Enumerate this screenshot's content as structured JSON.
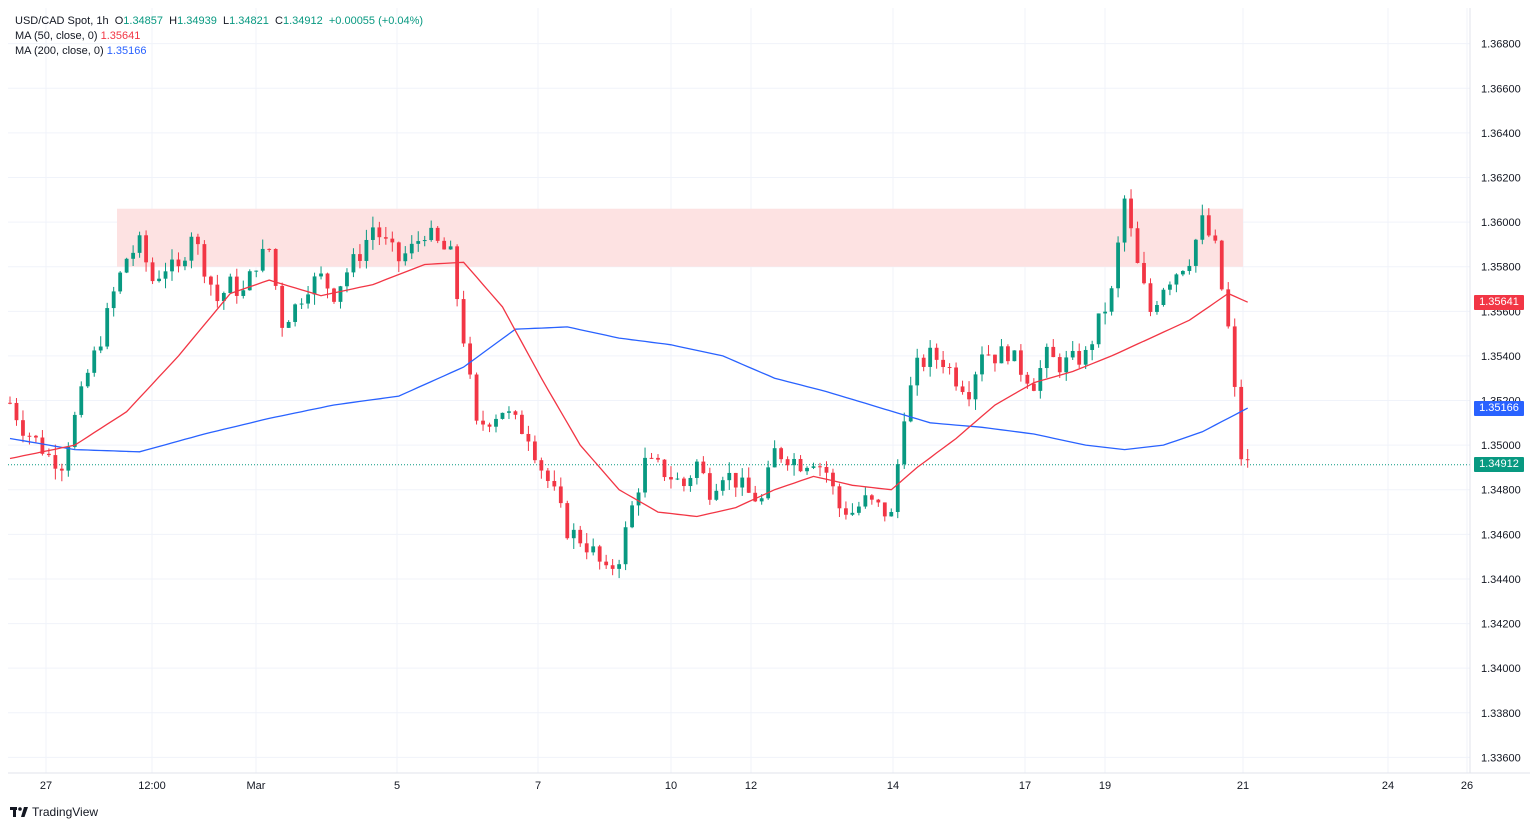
{
  "legend": {
    "symbol": "USD/CAD Spot",
    "interval": "1h",
    "o_label": "O",
    "o_value": "1.34857",
    "h_label": "H",
    "h_value": "1.34939",
    "l_label": "L",
    "l_value": "1.34821",
    "c_label": "C",
    "c_value": "1.34912",
    "change": "+0.00055 (+0.04%)",
    "ma50_label": "MA (50, close, 0)",
    "ma50_value": "1.35641",
    "ma200_label": "MA (200, close, 0)",
    "ma200_value": "1.35166"
  },
  "price_tags": {
    "ma50": "1.35641",
    "ma200": "1.35166",
    "last": "1.34912"
  },
  "brand": "TradingView",
  "colors": {
    "up": "#089981",
    "down": "#f23645",
    "ma50": "#f23645",
    "ma200": "#2962ff",
    "zone": "#fde2e2",
    "grid": "#f0f3fa"
  },
  "chart_data": {
    "type": "candlestick",
    "symbol": "USD/CAD Spot",
    "interval": "1h",
    "y_ticks": [
      "1.36800",
      "1.36600",
      "1.36400",
      "1.36200",
      "1.36000",
      "1.35800",
      "1.35600",
      "1.35400",
      "1.35200",
      "1.35000",
      "1.34800",
      "1.34600",
      "1.34400",
      "1.34200",
      "1.34000",
      "1.33800",
      "1.33600"
    ],
    "ylim": [
      1.3353,
      1.3696
    ],
    "x_tick_labels": [
      "27",
      "12:00",
      "Mar",
      "5",
      "7",
      "10",
      "12",
      "14",
      "17",
      "19",
      "21",
      "24",
      "26"
    ],
    "last_price": 1.34912,
    "resistance_zone": {
      "low": 1.358,
      "high": 1.3606
    },
    "close_path": [
      [
        0,
        1.3519
      ],
      [
        2,
        1.3508
      ],
      [
        4,
        1.3502
      ],
      [
        6,
        1.3495
      ],
      [
        8,
        1.3492
      ],
      [
        10,
        1.3512
      ],
      [
        12,
        1.3532
      ],
      [
        14,
        1.3548
      ],
      [
        16,
        1.3568
      ],
      [
        18,
        1.3584
      ],
      [
        20,
        1.359
      ],
      [
        22,
        1.3574
      ],
      [
        24,
        1.358
      ],
      [
        26,
        1.3578
      ],
      [
        28,
        1.3596
      ],
      [
        30,
        1.358
      ],
      [
        32,
        1.3565
      ],
      [
        34,
        1.3572
      ],
      [
        36,
        1.3568
      ],
      [
        38,
        1.3582
      ],
      [
        40,
        1.3588
      ],
      [
        42,
        1.3555
      ],
      [
        44,
        1.3562
      ],
      [
        46,
        1.3572
      ],
      [
        48,
        1.3575
      ],
      [
        50,
        1.3568
      ],
      [
        52,
        1.3578
      ],
      [
        54,
        1.3586
      ],
      [
        56,
        1.3598
      ],
      [
        58,
        1.359
      ],
      [
        60,
        1.3583
      ],
      [
        62,
        1.3588
      ],
      [
        64,
        1.3596
      ],
      [
        66,
        1.359
      ],
      [
        68,
        1.3585
      ],
      [
        70,
        1.3548
      ],
      [
        72,
        1.3508
      ],
      [
        74,
        1.3512
      ],
      [
        76,
        1.3516
      ],
      [
        78,
        1.351
      ],
      [
        80,
        1.3505
      ],
      [
        82,
        1.349
      ],
      [
        84,
        1.3478
      ],
      [
        86,
        1.3462
      ],
      [
        88,
        1.3458
      ],
      [
        90,
        1.3452
      ],
      [
        92,
        1.3442
      ],
      [
        94,
        1.345
      ],
      [
        96,
        1.3472
      ],
      [
        98,
        1.3492
      ],
      [
        100,
        1.349
      ],
      [
        102,
        1.3486
      ],
      [
        104,
        1.3482
      ],
      [
        106,
        1.3492
      ],
      [
        108,
        1.348
      ],
      [
        110,
        1.3488
      ],
      [
        112,
        1.3484
      ],
      [
        114,
        1.3478
      ],
      [
        116,
        1.3475
      ],
      [
        118,
        1.3497
      ],
      [
        120,
        1.3495
      ],
      [
        122,
        1.3492
      ],
      [
        124,
        1.3494
      ],
      [
        126,
        1.3488
      ],
      [
        128,
        1.3472
      ],
      [
        130,
        1.347
      ],
      [
        132,
        1.3475
      ],
      [
        134,
        1.3472
      ],
      [
        136,
        1.3468
      ],
      [
        138,
        1.3515
      ],
      [
        140,
        1.3535
      ],
      [
        142,
        1.354
      ],
      [
        144,
        1.3538
      ],
      [
        146,
        1.353
      ],
      [
        148,
        1.3525
      ],
      [
        150,
        1.3543
      ],
      [
        152,
        1.354
      ],
      [
        154,
        1.3542
      ],
      [
        156,
        1.3534
      ],
      [
        158,
        1.3528
      ],
      [
        160,
        1.354
      ],
      [
        162,
        1.3536
      ],
      [
        164,
        1.3538
      ],
      [
        166,
        1.354
      ],
      [
        168,
        1.3555
      ],
      [
        170,
        1.3568
      ],
      [
        172,
        1.361
      ],
      [
        174,
        1.358
      ],
      [
        176,
        1.356
      ],
      [
        178,
        1.3572
      ],
      [
        180,
        1.3578
      ],
      [
        182,
        1.3584
      ],
      [
        184,
        1.36
      ],
      [
        186,
        1.3588
      ],
      [
        188,
        1.3552
      ],
      [
        190,
        1.3495
      ],
      [
        191,
        1.34912
      ]
    ],
    "ma50": [
      [
        0,
        1.3494
      ],
      [
        10,
        1.35
      ],
      [
        18,
        1.3515
      ],
      [
        26,
        1.354
      ],
      [
        34,
        1.3568
      ],
      [
        40,
        1.3574
      ],
      [
        48,
        1.3567
      ],
      [
        56,
        1.3572
      ],
      [
        64,
        1.3581
      ],
      [
        70,
        1.3582
      ],
      [
        76,
        1.3562
      ],
      [
        82,
        1.353
      ],
      [
        88,
        1.35
      ],
      [
        94,
        1.348
      ],
      [
        100,
        1.347
      ],
      [
        106,
        1.3468
      ],
      [
        112,
        1.3472
      ],
      [
        118,
        1.348
      ],
      [
        124,
        1.3486
      ],
      [
        130,
        1.3482
      ],
      [
        136,
        1.348
      ],
      [
        140,
        1.349
      ],
      [
        146,
        1.3503
      ],
      [
        152,
        1.3518
      ],
      [
        158,
        1.3528
      ],
      [
        164,
        1.3533
      ],
      [
        170,
        1.354
      ],
      [
        176,
        1.3548
      ],
      [
        182,
        1.3556
      ],
      [
        188,
        1.3568
      ],
      [
        191,
        1.35641
      ]
    ],
    "ma200": [
      [
        0,
        1.3503
      ],
      [
        10,
        1.3498
      ],
      [
        20,
        1.3497
      ],
      [
        30,
        1.3505
      ],
      [
        40,
        1.3512
      ],
      [
        50,
        1.3518
      ],
      [
        60,
        1.3522
      ],
      [
        70,
        1.3535
      ],
      [
        78,
        1.3552
      ],
      [
        86,
        1.3553
      ],
      [
        94,
        1.3548
      ],
      [
        102,
        1.3545
      ],
      [
        110,
        1.354
      ],
      [
        118,
        1.353
      ],
      [
        126,
        1.3524
      ],
      [
        134,
        1.3517
      ],
      [
        142,
        1.351
      ],
      [
        150,
        1.3508
      ],
      [
        158,
        1.3505
      ],
      [
        166,
        1.35
      ],
      [
        172,
        1.3498
      ],
      [
        178,
        1.35
      ],
      [
        184,
        1.3506
      ],
      [
        191,
        1.35166
      ]
    ]
  }
}
